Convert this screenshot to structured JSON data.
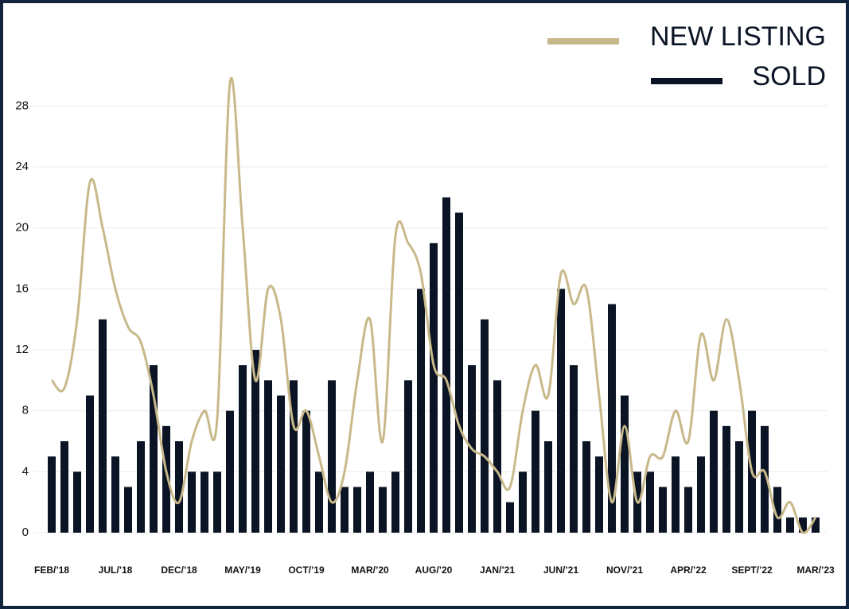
{
  "chart_data": {
    "type": "bar-line",
    "categories": [
      "FEB/’18",
      null,
      null,
      null,
      null,
      "JUL/’18",
      null,
      null,
      null,
      null,
      "DEC/’18",
      null,
      null,
      null,
      null,
      "MAY/’19",
      null,
      null,
      null,
      null,
      "OCT/’19",
      null,
      null,
      null,
      null,
      "MAR/’20",
      null,
      null,
      null,
      null,
      "AUG/’20",
      null,
      null,
      null,
      null,
      "JAN/’21",
      null,
      null,
      null,
      null,
      "JUN/’21",
      null,
      null,
      null,
      null,
      "NOV/’21",
      null,
      null,
      null,
      null,
      "APR/’22",
      null,
      null,
      null,
      null,
      "SEPT/’22",
      null,
      null,
      null,
      null,
      "MAR/’23"
    ],
    "series": [
      {
        "name": "NEW LISTING",
        "type": "line",
        "color": "#c8b98b",
        "values": [
          10,
          9.5,
          14,
          23,
          20,
          16,
          13.5,
          12.5,
          9,
          4,
          2,
          6,
          8,
          7.5,
          29.5,
          20,
          10,
          16,
          14,
          7,
          8,
          5,
          2,
          4,
          10,
          14,
          6,
          19.5,
          19,
          17,
          11,
          10,
          7,
          5.5,
          5,
          4,
          3,
          8,
          11,
          9,
          17,
          15,
          16,
          9,
          2,
          7,
          2,
          5,
          5,
          8,
          6,
          13,
          10,
          14,
          10,
          4,
          4,
          1,
          2,
          0,
          1
        ]
      },
      {
        "name": "SOLD",
        "type": "bar",
        "color": "#0b1424",
        "values": [
          5,
          6,
          4,
          9,
          14,
          5,
          3,
          6,
          11,
          7,
          6,
          4,
          4,
          4,
          8,
          11,
          12,
          10,
          9,
          10,
          8,
          4,
          10,
          3,
          3,
          4,
          3,
          4,
          10,
          16,
          19,
          22,
          21,
          11,
          14,
          10,
          2,
          4,
          8,
          6,
          16,
          11,
          6,
          5,
          15,
          9,
          4,
          4,
          3,
          5,
          3,
          5,
          8,
          7,
          6,
          8,
          7,
          3,
          1,
          1,
          1
        ]
      }
    ],
    "ylim": [
      0,
      30
    ],
    "yticks": [
      0,
      4,
      8,
      12,
      16,
      20,
      24,
      28
    ],
    "grid": true,
    "legend": "top-right"
  }
}
